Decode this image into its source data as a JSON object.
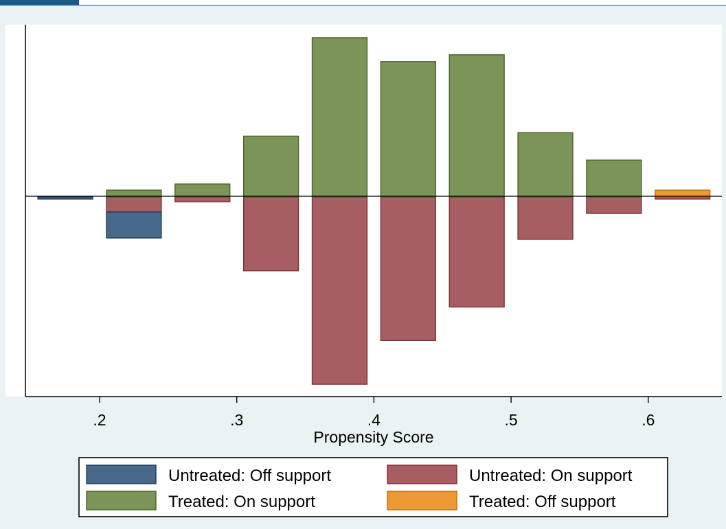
{
  "chart_data": {
    "type": "bar",
    "title": "",
    "xlabel": "Propensity Score",
    "ylabel": "",
    "xlim": [
      0.145,
      0.653
    ],
    "x_ticks": [
      0.2,
      0.3,
      0.4,
      0.5,
      0.6
    ],
    "x_tick_labels": [
      ".2",
      ".3",
      ".4",
      ".5",
      ".6"
    ],
    "ylim": [
      -0.292,
      0.252
    ],
    "bin_width": 0.04,
    "bin_centers": [
      0.175,
      0.225,
      0.275,
      0.325,
      0.375,
      0.425,
      0.475,
      0.525,
      0.575,
      0.625
    ],
    "series": [
      {
        "name": "Untreated: Off support",
        "color": "#49698b",
        "stack": "below",
        "values": [
          -0.003,
          -0.038,
          0,
          0,
          0,
          0,
          0,
          0,
          0,
          0
        ]
      },
      {
        "name": "Untreated: On support",
        "color": "#a65e62",
        "stack": "below",
        "values": [
          0,
          -0.022,
          -0.007,
          -0.108,
          -0.274,
          -0.21,
          -0.161,
          -0.062,
          -0.024,
          -0.003
        ]
      },
      {
        "name": "Treated: On support",
        "color": "#7b9458",
        "stack": "above",
        "values": [
          0,
          0.01,
          0.019,
          0.089,
          0.233,
          0.198,
          0.208,
          0.094,
          0.054,
          0
        ]
      },
      {
        "name": "Treated: Off support",
        "color": "#ec9a35",
        "stack": "above",
        "values": [
          0,
          0,
          0,
          0,
          0,
          0,
          0,
          0,
          0,
          0.01
        ]
      }
    ],
    "legend_position": "bottom",
    "grid": false
  }
}
